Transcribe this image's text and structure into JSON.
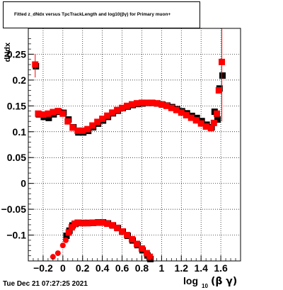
{
  "title": "Fitted z_dNdx versus TpcTrackLength and log10(βγ) for Primary muon+",
  "timestamp": "Tue Dec 21 07:27:25 2021",
  "chart_data": {
    "type": "scatter",
    "title": "Fitted z_dNdx versus TpcTrackLength and log10(βγ) for Primary muon+",
    "xlabel": "log10(βγ)",
    "ylabel": "dNdx",
    "xlim": [
      -0.35,
      1.8
    ],
    "ylim": [
      -0.15,
      0.3
    ],
    "x_ticks": [
      -0.2,
      0,
      0.2,
      0.4,
      0.6,
      0.8,
      1,
      1.2,
      1.4,
      1.6
    ],
    "x_tick_labels": [
      "−0.2",
      "0",
      "0.2",
      "0.4",
      "0.6",
      "0.8",
      "1",
      "1.2",
      "1.4",
      "1.6"
    ],
    "y_ticks": [
      -0.1,
      -0.05,
      0,
      0.05,
      0.1,
      0.15,
      0.2,
      0.25
    ],
    "y_tick_labels": [
      "−0.1",
      "−0.05",
      "0",
      "0.05",
      "0.1",
      "0.15",
      "0.2",
      "0.25"
    ],
    "grid": true,
    "series": [
      {
        "color": "#000000",
        "upper": [
          [
            -0.28,
            0.228
          ],
          [
            -0.25,
            0.135
          ],
          [
            -0.2,
            0.13
          ],
          [
            -0.15,
            0.128
          ],
          [
            -0.1,
            0.135
          ],
          [
            -0.05,
            0.14
          ],
          [
            0,
            0.138
          ],
          [
            0.05,
            0.125
          ],
          [
            0.1,
            0.11
          ],
          [
            0.15,
            0.1
          ],
          [
            0.2,
            0.1
          ],
          [
            0.25,
            0.103
          ],
          [
            0.3,
            0.11
          ],
          [
            0.35,
            0.117
          ],
          [
            0.4,
            0.123
          ],
          [
            0.45,
            0.13
          ],
          [
            0.5,
            0.137
          ],
          [
            0.55,
            0.142
          ],
          [
            0.6,
            0.147
          ],
          [
            0.65,
            0.15
          ],
          [
            0.7,
            0.153
          ],
          [
            0.75,
            0.155
          ],
          [
            0.8,
            0.156
          ],
          [
            0.85,
            0.157
          ],
          [
            0.9,
            0.157
          ],
          [
            0.95,
            0.156
          ],
          [
            1,
            0.154
          ],
          [
            1.05,
            0.152
          ],
          [
            1.1,
            0.149
          ],
          [
            1.15,
            0.145
          ],
          [
            1.2,
            0.141
          ],
          [
            1.25,
            0.137
          ],
          [
            1.3,
            0.132
          ],
          [
            1.35,
            0.128
          ],
          [
            1.4,
            0.122
          ],
          [
            1.45,
            0.115
          ],
          [
            1.5,
            0.11
          ],
          [
            1.53,
            0.14
          ],
          [
            1.56,
            0.125
          ],
          [
            1.58,
            0.185
          ],
          [
            1.61,
            0.21
          ]
        ],
        "lower": [
          [
            0.03,
            -0.1
          ],
          [
            0.06,
            -0.09
          ],
          [
            0.09,
            -0.08
          ],
          [
            0.12,
            -0.077
          ],
          [
            0.15,
            -0.075
          ],
          [
            0.2,
            -0.075
          ],
          [
            0.25,
            -0.075
          ],
          [
            0.3,
            -0.075
          ],
          [
            0.35,
            -0.074
          ],
          [
            0.4,
            -0.074
          ],
          [
            0.45,
            -0.076
          ],
          [
            0.5,
            -0.08
          ],
          [
            0.55,
            -0.085
          ],
          [
            0.6,
            -0.092
          ],
          [
            0.65,
            -0.1
          ],
          [
            0.7,
            -0.109
          ],
          [
            0.75,
            -0.118
          ],
          [
            0.8,
            -0.128
          ],
          [
            0.85,
            -0.138
          ],
          [
            0.88,
            -0.145
          ]
        ]
      },
      {
        "color": "#ff0000",
        "upper": [
          [
            -0.28,
            0.23
          ],
          [
            -0.25,
            0.135
          ],
          [
            -0.2,
            0.133
          ],
          [
            -0.15,
            0.135
          ],
          [
            -0.1,
            0.138
          ],
          [
            -0.05,
            0.14
          ],
          [
            0,
            0.135
          ],
          [
            0.05,
            0.12
          ],
          [
            0.1,
            0.108
          ],
          [
            0.15,
            0.102
          ],
          [
            0.2,
            0.102
          ],
          [
            0.25,
            0.105
          ],
          [
            0.3,
            0.112
          ],
          [
            0.35,
            0.119
          ],
          [
            0.4,
            0.125
          ],
          [
            0.45,
            0.131
          ],
          [
            0.5,
            0.137
          ],
          [
            0.55,
            0.142
          ],
          [
            0.6,
            0.146
          ],
          [
            0.65,
            0.15
          ],
          [
            0.7,
            0.153
          ],
          [
            0.75,
            0.155
          ],
          [
            0.8,
            0.156
          ],
          [
            0.85,
            0.156
          ],
          [
            0.9,
            0.156
          ],
          [
            0.95,
            0.155
          ],
          [
            1,
            0.153
          ],
          [
            1.05,
            0.15
          ],
          [
            1.1,
            0.146
          ],
          [
            1.15,
            0.142
          ],
          [
            1.2,
            0.137
          ],
          [
            1.25,
            0.132
          ],
          [
            1.3,
            0.127
          ],
          [
            1.35,
            0.122
          ],
          [
            1.4,
            0.116
          ],
          [
            1.45,
            0.11
          ],
          [
            1.5,
            0.107
          ],
          [
            1.53,
            0.117
          ],
          [
            1.56,
            0.135
          ],
          [
            1.58,
            0.18
          ],
          [
            1.61,
            0.235
          ]
        ],
        "lower": [
          [
            -0.1,
            -0.142
          ],
          [
            -0.05,
            -0.135
          ],
          [
            0,
            -0.12
          ],
          [
            0.03,
            -0.11
          ],
          [
            0.06,
            -0.095
          ],
          [
            0.09,
            -0.085
          ],
          [
            0.12,
            -0.078
          ],
          [
            0.15,
            -0.076
          ],
          [
            0.2,
            -0.077
          ],
          [
            0.25,
            -0.077
          ],
          [
            0.3,
            -0.076
          ],
          [
            0.35,
            -0.076
          ],
          [
            0.4,
            -0.076
          ],
          [
            0.45,
            -0.078
          ],
          [
            0.5,
            -0.081
          ],
          [
            0.55,
            -0.086
          ],
          [
            0.6,
            -0.093
          ],
          [
            0.65,
            -0.1
          ],
          [
            0.7,
            -0.108
          ],
          [
            0.75,
            -0.117
          ],
          [
            0.8,
            -0.126
          ],
          [
            0.85,
            -0.135
          ],
          [
            0.88,
            -0.142
          ]
        ]
      }
    ]
  }
}
